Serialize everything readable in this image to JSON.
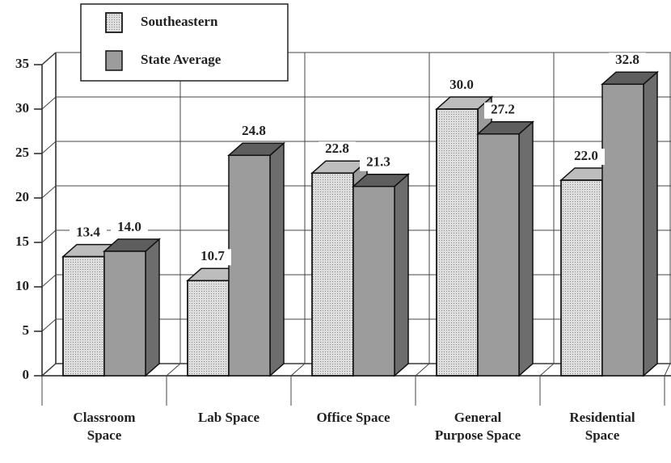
{
  "chart_data": {
    "type": "bar",
    "categories": [
      "Classroom Space",
      "Lab Space",
      "Office Space",
      "General Purpose Space",
      "Residential Space"
    ],
    "series": [
      {
        "name": "Southeastern",
        "color": "#dedede",
        "values": [
          13.4,
          10.7,
          22.8,
          30.0,
          22.0
        ],
        "value_labels": [
          "13.4",
          "10.7",
          "22.8",
          "30.0",
          "22.0"
        ]
      },
      {
        "name": "State Average",
        "color": "#9c9c9c",
        "values": [
          14.0,
          24.8,
          21.3,
          27.2,
          32.8
        ],
        "value_labels": [
          "14.0",
          "24.8",
          "21.3",
          "27.2",
          "32.8"
        ]
      }
    ],
    "ylim": [
      0,
      35
    ],
    "yticks": [
      0,
      5,
      10,
      15,
      20,
      25,
      30,
      35
    ],
    "grid": true,
    "legend": "top-left"
  }
}
